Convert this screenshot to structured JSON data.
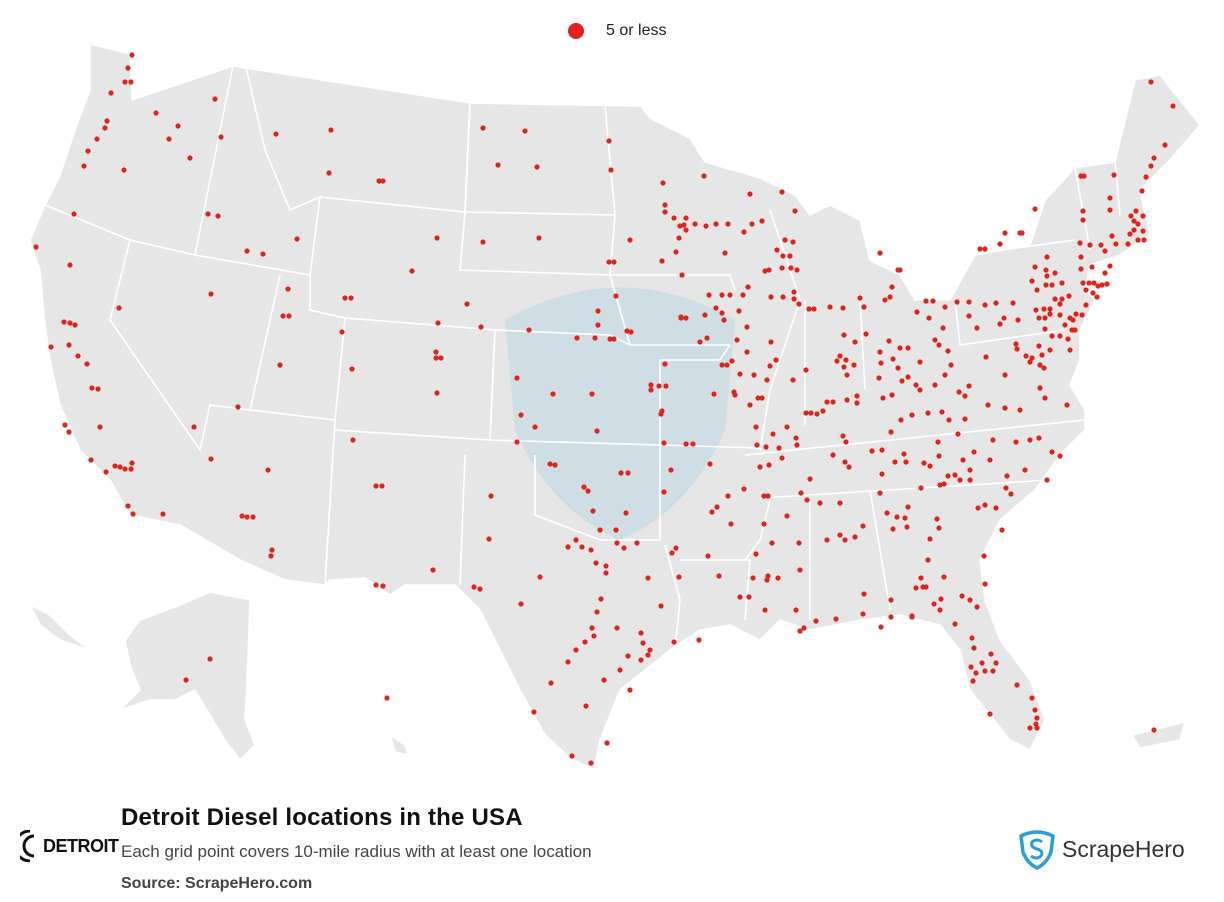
{
  "legend": {
    "label": "5 or less",
    "dot_color": "#e2231a"
  },
  "footer": {
    "title": "Detroit Diesel locations in the USA",
    "subtitle": "Each grid point covers 10-mile radius with at least one location",
    "source": "Source: ScrapeHero.com"
  },
  "brand": {
    "logo_text": "DETROIT"
  },
  "publisher": {
    "name": "ScrapeHero",
    "accent": "#2a9fd6"
  },
  "colors": {
    "land": "#e6e6e6",
    "border": "#ffffff",
    "marker": "#e2231a"
  },
  "map_data": {
    "type": "dot-map",
    "region": "USA",
    "marker_count": 383
  }
}
